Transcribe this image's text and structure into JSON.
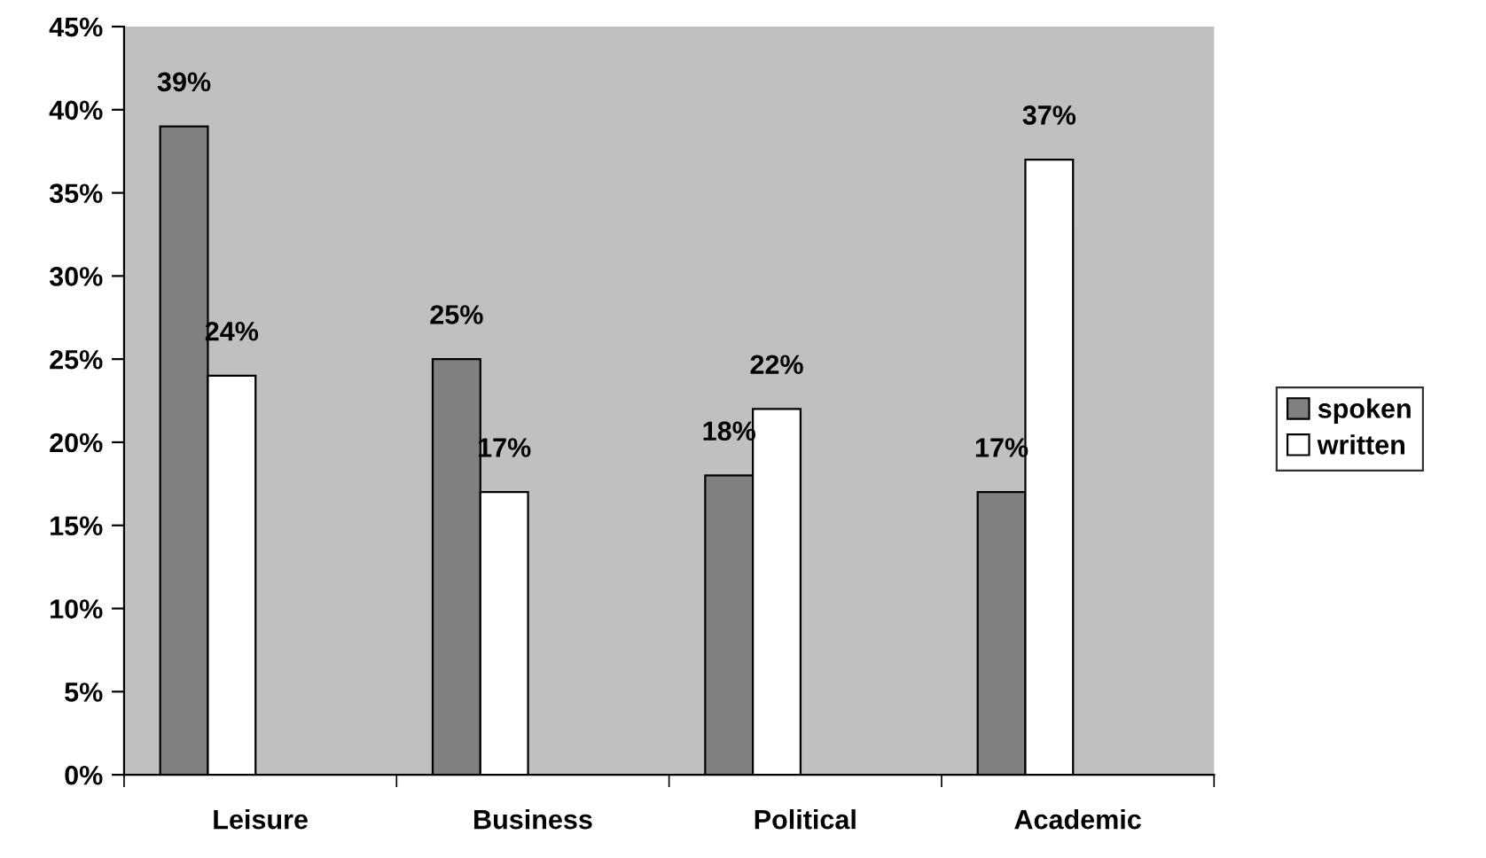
{
  "chart_data": {
    "type": "bar",
    "categories": [
      "Leisure",
      "Business",
      "Political",
      "Academic"
    ],
    "series": [
      {
        "name": "spoken",
        "color": "#808080",
        "values": [
          39,
          25,
          18,
          17
        ],
        "value_labels": [
          "39%",
          "25%",
          "18%",
          "17%"
        ]
      },
      {
        "name": "written",
        "color": "#ffffff",
        "values": [
          24,
          17,
          22,
          37
        ],
        "value_labels": [
          "24%",
          "17%",
          "22%",
          "37%"
        ]
      }
    ],
    "ylim": [
      0,
      45
    ],
    "yticks": [
      {
        "value": 0,
        "label": "0%"
      },
      {
        "value": 5,
        "label": "5%"
      },
      {
        "value": 10,
        "label": "10%"
      },
      {
        "value": 15,
        "label": "15%"
      },
      {
        "value": 20,
        "label": "20%"
      },
      {
        "value": 25,
        "label": "25%"
      },
      {
        "value": 30,
        "label": "30%"
      },
      {
        "value": 35,
        "label": "35%"
      },
      {
        "value": 40,
        "label": "40%"
      },
      {
        "value": 45,
        "label": "45%"
      }
    ],
    "grid": false,
    "legend": "right"
  }
}
